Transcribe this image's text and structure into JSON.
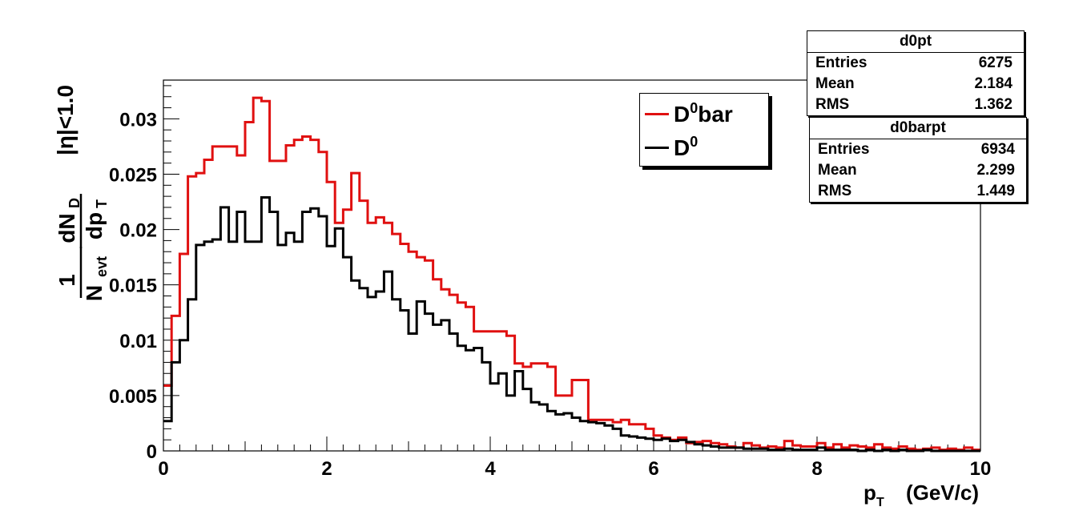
{
  "chart_data": {
    "type": "line",
    "xlabel": "p",
    "xlabel_sub": "T",
    "xlabel_unit": "(GeV/c)",
    "ylabel": {
      "frac1_num": "1",
      "frac1_den": "N",
      "frac1_den_sub": "evt",
      "frac2_num": "dN",
      "frac2_num_sub": "D",
      "frac2_den": "dp",
      "frac2_den_sub": "T",
      "condition": "|η|<1.0"
    },
    "xlim": [
      0,
      10
    ],
    "ylim": [
      0,
      0.0335
    ],
    "x_ticks": [
      "0",
      "2",
      "4",
      "6",
      "8",
      "10"
    ],
    "y_ticks": [
      "0",
      "0.005",
      "0.01",
      "0.015",
      "0.02",
      "0.025",
      "0.03"
    ],
    "bin_width": 0.1,
    "legend_position": "top-right",
    "series": [
      {
        "name": "D",
        "name_sup": "0",
        "name_suffix": "bar",
        "color": "#e01010",
        "values": [
          0.0059,
          0.0122,
          0.0178,
          0.0248,
          0.0251,
          0.0263,
          0.0275,
          0.0275,
          0.0275,
          0.0267,
          0.0297,
          0.0319,
          0.0316,
          0.0262,
          0.0262,
          0.0276,
          0.0281,
          0.0284,
          0.0281,
          0.027,
          0.0243,
          0.0206,
          0.0218,
          0.0251,
          0.0226,
          0.0206,
          0.0211,
          0.0206,
          0.0196,
          0.0187,
          0.018,
          0.0175,
          0.0172,
          0.0155,
          0.0146,
          0.0141,
          0.0134,
          0.013,
          0.0108,
          0.0108,
          0.0108,
          0.0108,
          0.0104,
          0.0079,
          0.0076,
          0.0079,
          0.0079,
          0.0076,
          0.005,
          0.005,
          0.0064,
          0.0064,
          0.0028,
          0.0028,
          0.0028,
          0.0026,
          0.0028,
          0.0024,
          0.0024,
          0.002,
          0.0014,
          0.0012,
          0.001,
          0.0012,
          0.0007,
          0.0008,
          0.0009,
          0.0007,
          0.0006,
          0.0004,
          0.0003,
          0.0007,
          0.0005,
          0.0003,
          0.0004,
          0.0003,
          0.0009,
          0.0005,
          0.0004,
          0.0004,
          0.0007,
          0.0003,
          0.0006,
          0.0003,
          0.0005,
          0.0004,
          0.0003,
          0.0006,
          0.0003,
          0.0002,
          0.0004,
          0.0002,
          0.0001,
          0.0002,
          0.0003,
          0.0001,
          0.0002,
          0.0001,
          0.0003,
          0.0001
        ]
      },
      {
        "name": "D",
        "name_sup": "0",
        "name_suffix": "",
        "color": "#000000",
        "values": [
          0.0027,
          0.008,
          0.01,
          0.0137,
          0.0186,
          0.0189,
          0.0191,
          0.022,
          0.0189,
          0.0216,
          0.0189,
          0.0189,
          0.0229,
          0.0216,
          0.0186,
          0.0197,
          0.0189,
          0.0216,
          0.0219,
          0.0212,
          0.0185,
          0.0201,
          0.0175,
          0.0154,
          0.0147,
          0.0139,
          0.0144,
          0.0162,
          0.0137,
          0.0127,
          0.0106,
          0.0135,
          0.0124,
          0.0114,
          0.0118,
          0.0106,
          0.0095,
          0.0091,
          0.0093,
          0.008,
          0.0061,
          0.007,
          0.005,
          0.0072,
          0.0056,
          0.0044,
          0.0042,
          0.0036,
          0.0033,
          0.0034,
          0.003,
          0.0027,
          0.0026,
          0.0025,
          0.0023,
          0.002,
          0.0014,
          0.0013,
          0.0012,
          0.0011,
          0.001,
          0.0011,
          0.0009,
          0.001,
          0.0008,
          0.0006,
          0.0005,
          0.0004,
          0.0003,
          0.0003,
          0.0003,
          0.0002,
          0.0002,
          0.0002,
          0.0001,
          0.0001,
          0.0002,
          0.0001,
          0.0001,
          0.0001,
          0.0003,
          0.0001,
          0.0001,
          0.0001,
          0.0001,
          0.0,
          0.0001,
          0.0,
          0.0001,
          0.0,
          0.0001,
          0.0,
          0.0,
          0.0001,
          0.0,
          0.0,
          0.0,
          0.0,
          0.0,
          0.0
        ]
      }
    ]
  },
  "stats": [
    {
      "title": "d0pt",
      "rows": [
        {
          "label": "Entries",
          "value": "6275"
        },
        {
          "label": "Mean",
          "value": "2.184"
        },
        {
          "label": "RMS",
          "value": "1.362"
        }
      ]
    },
    {
      "title": "d0barpt",
      "rows": [
        {
          "label": "Entries",
          "value": "6934"
        },
        {
          "label": "Mean",
          "value": "2.299"
        },
        {
          "label": "RMS",
          "value": "1.449"
        }
      ]
    }
  ]
}
